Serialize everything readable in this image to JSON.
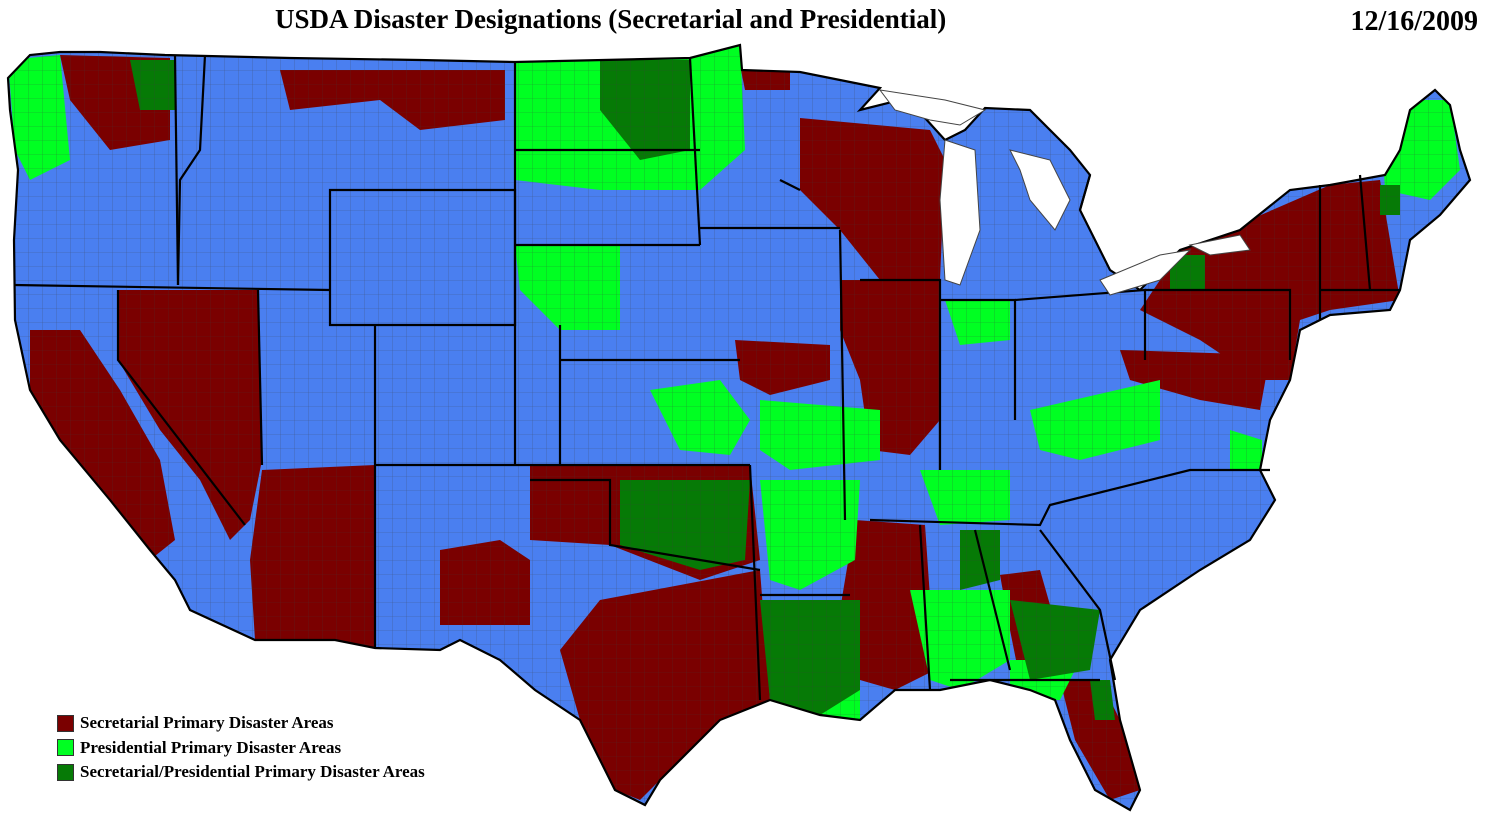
{
  "header": {
    "title": "USDA Disaster Designations (Secretarial and Presidential)",
    "date": "12/16/2009"
  },
  "colors": {
    "base": "#4A7FF0",
    "secretarial": "#7A0000",
    "presidential": "#00FF22",
    "both": "#067A06",
    "county_border": "#555555",
    "state_border": "#000000",
    "water": "#FFFFFF"
  },
  "legend": {
    "items": [
      {
        "label": "Secretarial Primary Disaster Areas",
        "color": "#7A0000"
      },
      {
        "label": "Presidential Primary Disaster Areas",
        "color": "#00FF22"
      },
      {
        "label": "Secretarial/Presidential Primary Disaster Areas",
        "color": "#067A06"
      }
    ]
  }
}
